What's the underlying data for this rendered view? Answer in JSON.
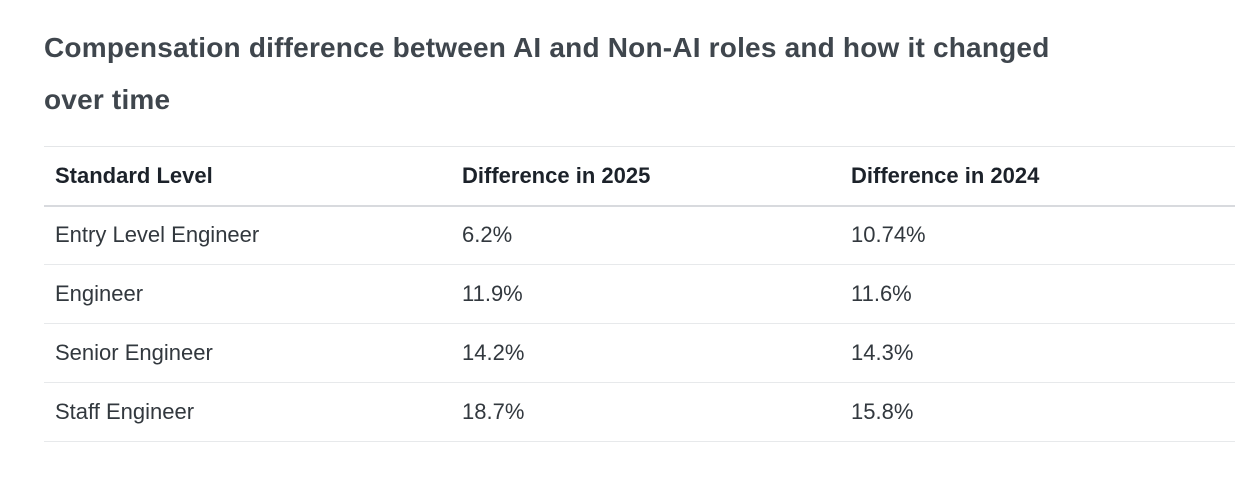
{
  "header": {
    "title": "Compensation difference between AI and Non-AI roles and how it changed over time",
    "title_lines": [
      "Compensation difference between AI and Non-AI roles and how it changed",
      "over time"
    ]
  },
  "table": {
    "headers": [
      "Standard Level",
      "Difference in 2025",
      "Difference in 2024"
    ],
    "rows": [
      {
        "level": "Entry Level Engineer",
        "diff_2025": "6.2%",
        "diff_2024": "10.74%"
      },
      {
        "level": "Engineer",
        "diff_2025": "11.9%",
        "diff_2024": "11.6%"
      },
      {
        "level": "Senior Engineer",
        "diff_2025": "14.2%",
        "diff_2024": "14.3%"
      },
      {
        "level": "Staff Engineer",
        "diff_2025": "18.7%",
        "diff_2024": "15.8%"
      }
    ]
  },
  "colors": {
    "background": "#ffffff",
    "title_text": "#3f464d",
    "header_text": "#1c222a",
    "body_text": "#32383e",
    "row_border": "#e7e9eb",
    "header_border": "#d8dade"
  },
  "chart_data": {
    "type": "table",
    "title": "Compensation difference between AI and Non-AI roles and how it changed over time",
    "columns": [
      "Standard Level",
      "Difference in 2025",
      "Difference in 2024"
    ],
    "rows": [
      [
        "Entry Level Engineer",
        "6.2%",
        "10.74%"
      ],
      [
        "Engineer",
        "11.9%",
        "11.6%"
      ],
      [
        "Senior Engineer",
        "14.2%",
        "14.3%"
      ],
      [
        "Staff Engineer",
        "18.7%",
        "15.8%"
      ]
    ],
    "series": [
      {
        "name": "Difference in 2025",
        "values": [
          6.2,
          11.9,
          14.2,
          18.7
        ]
      },
      {
        "name": "Difference in 2024",
        "values": [
          10.74,
          11.6,
          14.3,
          15.8
        ]
      }
    ],
    "categories": [
      "Entry Level Engineer",
      "Engineer",
      "Senior Engineer",
      "Staff Engineer"
    ]
  }
}
